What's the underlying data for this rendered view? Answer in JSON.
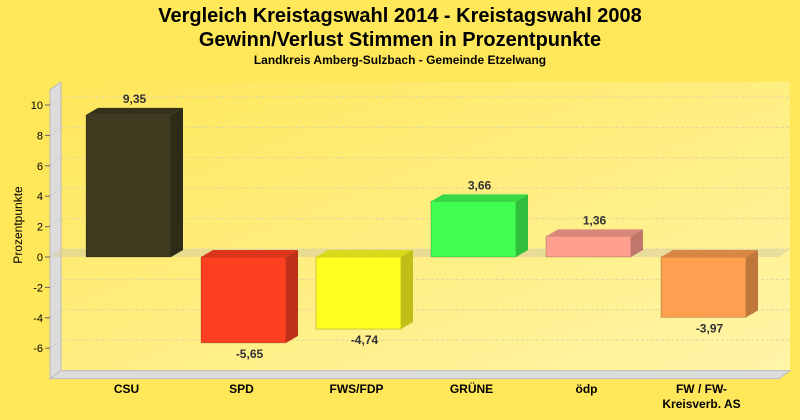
{
  "chart_data": {
    "type": "bar",
    "title": "Vergleich Kreistagswahl 2014 - Kreistagswahl 2008",
    "title2": "Gewinn/Verlust Stimmen in Prozentpunkte",
    "subtitle": "Landkreis Amberg-Sulzbach - Gemeinde Etzelwang",
    "xlabel": "",
    "ylabel": "Prozentpunkte",
    "ylim": [
      -8,
      11
    ],
    "yticks": [
      -6,
      -4,
      -2,
      0,
      2,
      4,
      6,
      8,
      10
    ],
    "grid": true,
    "categories": [
      "CSU",
      "SPD",
      "FWS/FDP",
      "GRÜNE",
      "ödp",
      "FW / FW-\nKreisverb. AS"
    ],
    "values": [
      9.35,
      -5.65,
      -4.74,
      3.66,
      1.36,
      -3.97
    ],
    "labels": [
      "9,35",
      "-5,65",
      "-4,74",
      "3,66",
      "1,36",
      "-3,97"
    ],
    "colors": [
      "#3d3a1f",
      "#ff4020",
      "#ffff20",
      "#40ff50",
      "#ff9f8f",
      "#ff9f50"
    ]
  }
}
